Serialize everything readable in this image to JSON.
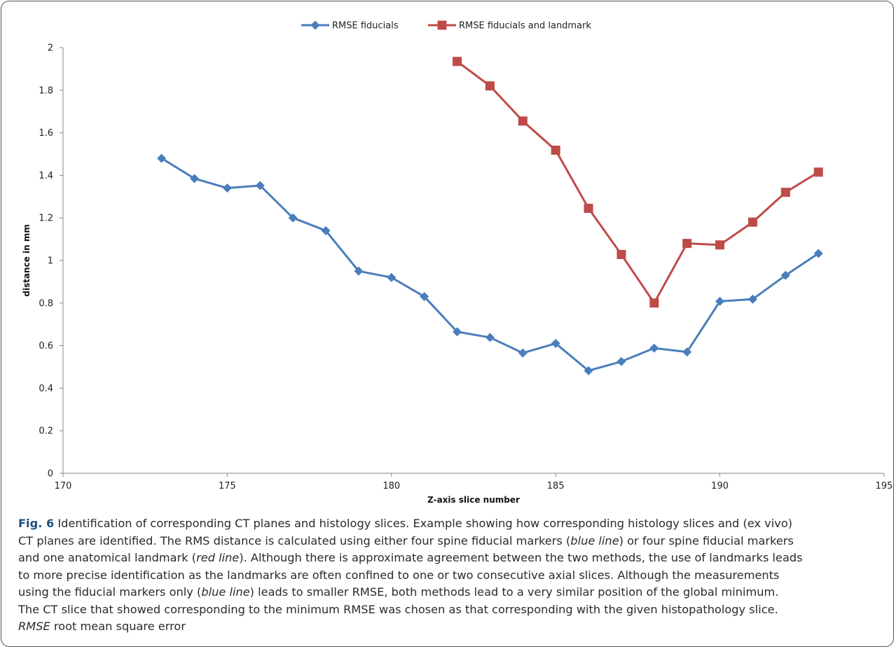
{
  "chart_data": {
    "type": "line",
    "title": "",
    "xlabel": "Z-axis slice number",
    "ylabel": "distance in mm",
    "xlim": [
      170,
      195
    ],
    "ylim": [
      0,
      2
    ],
    "x_ticks": [
      "170",
      "175",
      "180",
      "185",
      "190",
      "195"
    ],
    "y_ticks": [
      "0",
      "0.2",
      "0.4",
      "0.6",
      "0.8",
      "1",
      "1.2",
      "1.4",
      "1.6",
      "1.8",
      "2"
    ],
    "grid": false,
    "legend_position": "top-center",
    "series": [
      {
        "name": "RMSE fiducials",
        "color": "#4a7ebb",
        "marker": "diamond",
        "x": [
          173,
          174,
          175,
          176,
          177,
          178,
          179,
          180,
          181,
          182,
          183,
          184,
          185,
          186,
          187,
          188,
          189,
          190,
          191,
          192,
          193
        ],
        "y": [
          1.48,
          1.385,
          1.34,
          1.352,
          1.2,
          1.14,
          0.95,
          0.92,
          0.83,
          0.665,
          0.638,
          0.565,
          0.61,
          0.482,
          0.525,
          0.588,
          0.57,
          0.808,
          0.818,
          0.93,
          1.033
        ]
      },
      {
        "name": "RMSE fiducials and landmark",
        "color": "#be4b48",
        "marker": "square",
        "x": [
          182,
          183,
          184,
          185,
          186,
          187,
          188,
          189,
          190,
          191,
          192,
          193
        ],
        "y": [
          1.935,
          1.82,
          1.655,
          1.518,
          1.245,
          1.028,
          0.8,
          1.08,
          1.073,
          1.18,
          1.32,
          1.415
        ]
      }
    ]
  },
  "caption": {
    "label": "Fig. 6",
    "lines": [
      [
        {
          "t": " Identification of corresponding CT planes and histology slices. Example showing how corresponding histology slices and (ex vivo)"
        }
      ],
      [
        {
          "t": "CT planes are identified. The RMS distance is calculated using either four spine fiducial markers ("
        },
        {
          "t": "blue line",
          "i": true
        },
        {
          "t": ") or four spine fiducial markers"
        }
      ],
      [
        {
          "t": "and one anatomical landmark ("
        },
        {
          "t": "red line",
          "i": true
        },
        {
          "t": "). Although there is approximate agreement between the two methods, the use of landmarks leads"
        }
      ],
      [
        {
          "t": "to more precise identification as the landmarks are often confined to one or two consecutive axial slices. Although the measurements"
        }
      ],
      [
        {
          "t": "using the fiducial markers only ("
        },
        {
          "t": "blue line",
          "i": true
        },
        {
          "t": ") leads to smaller RMSE, both methods lead to a very similar position of the global minimum."
        }
      ],
      [
        {
          "t": "The CT slice that showed corresponding to the minimum RMSE was chosen as that corresponding with the given histopathology slice."
        }
      ],
      [
        {
          "t": "RMSE",
          "i": true
        },
        {
          "t": " root mean square error"
        }
      ]
    ]
  }
}
